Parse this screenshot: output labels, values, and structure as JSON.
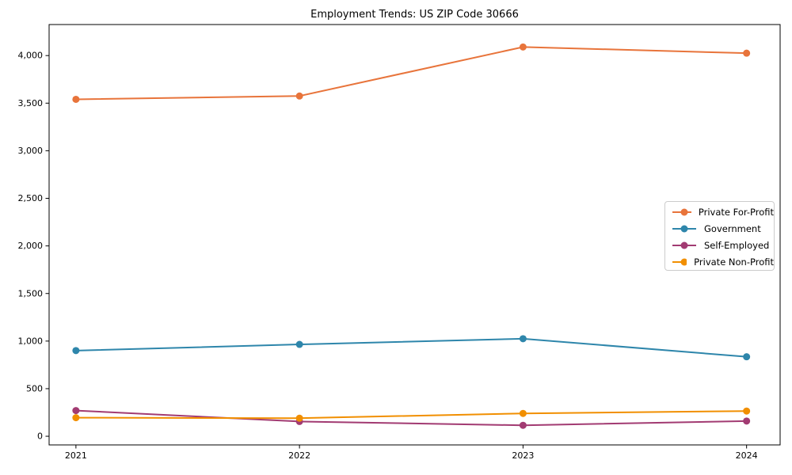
{
  "chart_data": {
    "type": "line",
    "title": "Employment Trends: US ZIP Code 30666",
    "xlabel": "",
    "ylabel": "",
    "x": [
      2021,
      2022,
      2023,
      2024
    ],
    "x_labels": [
      "2021",
      "2022",
      "2023",
      "2024"
    ],
    "series": [
      {
        "name": "Private For-Profit",
        "color": "#E8743B",
        "values": [
          3540,
          3575,
          4090,
          4025
        ]
      },
      {
        "name": "Government",
        "color": "#2E86AB",
        "values": [
          900,
          965,
          1025,
          835
        ]
      },
      {
        "name": "Self-Employed",
        "color": "#A23B72",
        "values": [
          270,
          155,
          115,
          160
        ]
      },
      {
        "name": "Private Non-Profit",
        "color": "#F18F01",
        "values": [
          195,
          190,
          240,
          265
        ]
      }
    ],
    "yticks": [
      0,
      500,
      1000,
      1500,
      2000,
      2500,
      3000,
      3500,
      4000
    ],
    "ytick_labels": [
      "0",
      "500",
      "1,000",
      "1,500",
      "2,000",
      "2,500",
      "3,000",
      "3,500",
      "4,000"
    ],
    "ylim": [
      -91,
      4326
    ],
    "xlim": [
      2020.88,
      2024.15
    ],
    "grid": false,
    "marker": "circle",
    "legend_position": "center-right"
  },
  "style": {
    "background": "#ffffff",
    "spine_color": "#000000",
    "tick_color": "#000000",
    "text_color": "#000000",
    "legend_border": "#cccccc"
  }
}
